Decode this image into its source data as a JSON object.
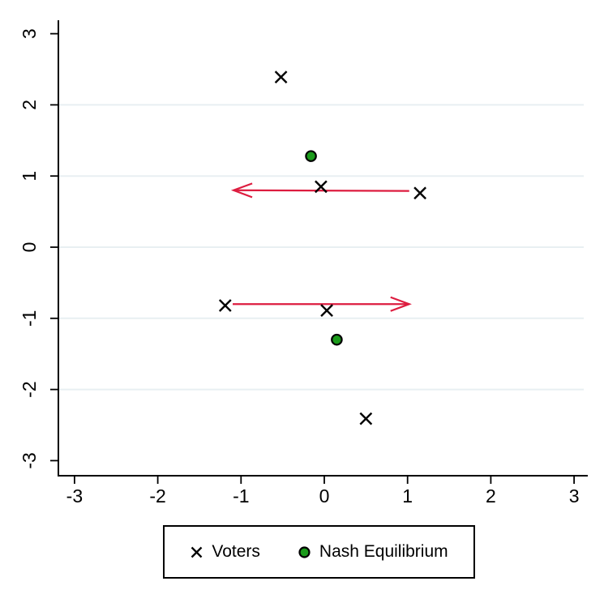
{
  "figure": {
    "background": "#ffffff",
    "axis_color": "#000000",
    "tick_label_color": "#000000"
  },
  "legend": {
    "items": [
      {
        "label": "Voters",
        "marker": "x-marker-icon",
        "color": "#000000"
      },
      {
        "label": "Nash Equilibrium",
        "marker": "circle-marker-icon",
        "color": "#1b9b1b",
        "edge_color": "#000000"
      }
    ]
  },
  "chart_data": {
    "type": "scatter",
    "title": "",
    "xlabel": "",
    "ylabel": "",
    "xlim": [
      -3.3,
      3.2
    ],
    "ylim": [
      -3.2,
      3.2
    ],
    "xticks": [
      -3,
      -2,
      -1,
      0,
      1,
      2,
      3
    ],
    "yticks": [
      -3,
      -2,
      -1,
      0,
      1,
      2,
      3
    ],
    "grid": "horizontal-only",
    "grid_yvalues": [
      -2,
      -1,
      0,
      1,
      2
    ],
    "grid_color": "#e8eff2",
    "legend_position": "bottom-center",
    "series": [
      {
        "name": "Voters",
        "marker": "x",
        "color": "#000000",
        "points": [
          [
            -0.52,
            2.39
          ],
          [
            -0.04,
            0.85
          ],
          [
            1.15,
            0.76
          ],
          [
            -1.19,
            -0.82
          ],
          [
            0.03,
            -0.89
          ],
          [
            0.5,
            -2.41
          ]
        ]
      },
      {
        "name": "Nash Equilibrium",
        "marker": "circle",
        "fill_color": "#1b9b1b",
        "edge_color": "#000000",
        "points": [
          [
            -0.16,
            1.28
          ],
          [
            0.15,
            -1.3
          ]
        ]
      }
    ],
    "arrows": [
      {
        "from": [
          1.02,
          0.79
        ],
        "to": [
          -1.09,
          0.8
        ],
        "color": "#dd1c3f"
      },
      {
        "from": [
          -1.1,
          -0.8
        ],
        "to": [
          1.02,
          -0.8
        ],
        "color": "#dd1c3f"
      }
    ]
  }
}
